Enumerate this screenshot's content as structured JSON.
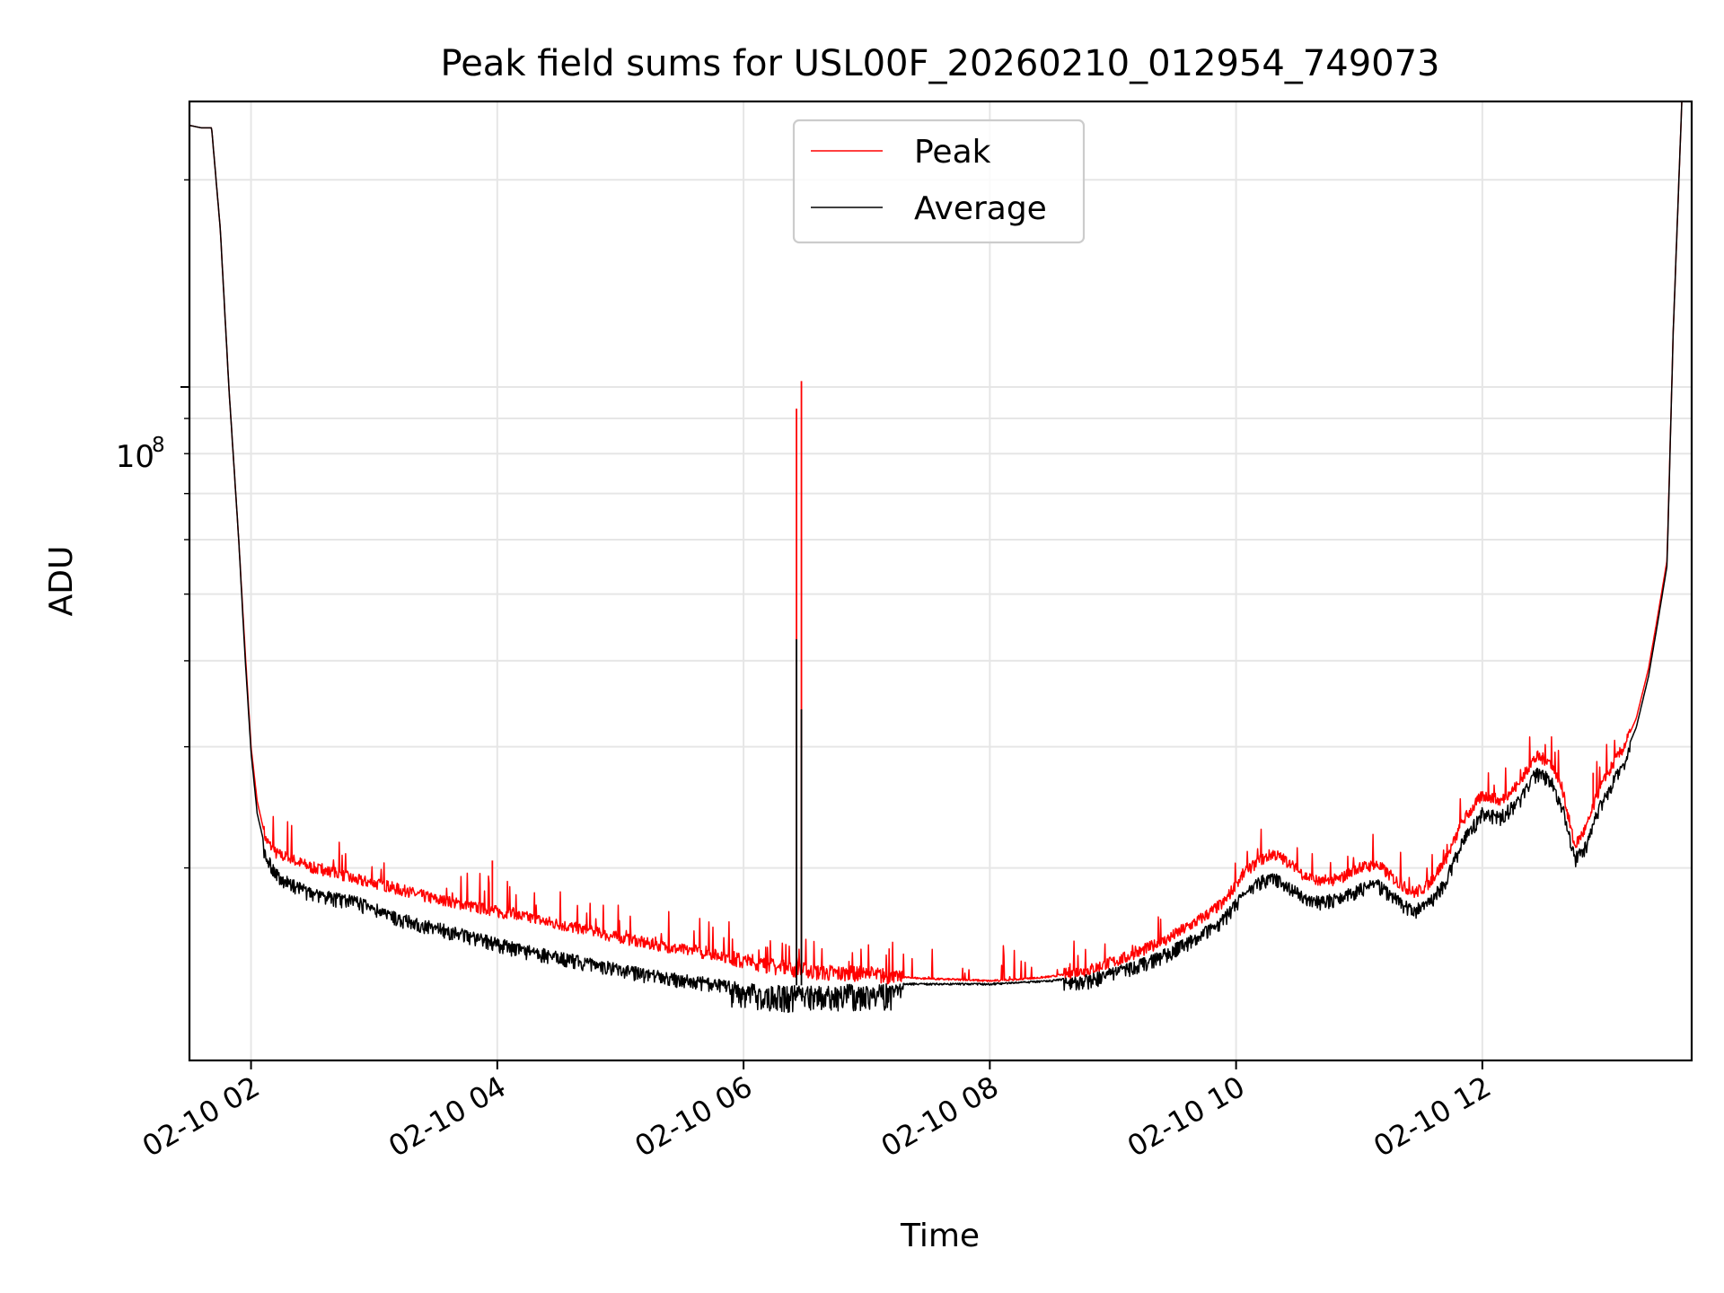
{
  "chart_data": {
    "type": "line",
    "title": "Peak field sums for USL00F_20260210_012954_749073",
    "xlabel": "Time",
    "ylabel": "ADU",
    "yscale": "log",
    "xlim": [
      1.5,
      13.7
    ],
    "ylim": [
      10500000.0,
      260000000.0
    ],
    "x_unit": "hours since 02-10 00:00",
    "x_ticks": [
      2,
      4,
      6,
      8,
      10,
      12
    ],
    "x_tick_labels": [
      "02-10 02",
      "02-10 04",
      "02-10 06",
      "02-10 08",
      "02-10 10",
      "02-10 12"
    ],
    "y_major_ticks": [
      100000000
    ],
    "y_tick_base": "10",
    "y_tick_exponent": "8",
    "y_minor_ticks": [
      20000000,
      30000000,
      40000000,
      50000000,
      60000000,
      70000000,
      80000000,
      90000000,
      200000000
    ],
    "grid": true,
    "legend_position": "upper-center",
    "series": [
      {
        "name": "Peak",
        "color": "#ff0000",
        "x": [
          1.5,
          1.6,
          1.68,
          1.75,
          1.82,
          1.9,
          1.95,
          2.0,
          2.05,
          2.12,
          2.2,
          2.35,
          2.5,
          2.7,
          2.85,
          3.0,
          3.2,
          3.5,
          3.9,
          4.2,
          4.6,
          5.0,
          5.4,
          5.8,
          6.0,
          6.3,
          6.6,
          6.9,
          7.2,
          7.5,
          7.8,
          8.0,
          8.2,
          8.5,
          8.8,
          9.1,
          9.4,
          9.7,
          9.9,
          10.05,
          10.2,
          10.3,
          10.4,
          10.55,
          10.7,
          10.85,
          11.0,
          11.15,
          11.25,
          11.35,
          11.45,
          11.55,
          11.7,
          11.85,
          12.0,
          12.15,
          12.3,
          12.4,
          12.45,
          12.55,
          12.65,
          12.75,
          12.85,
          12.95,
          13.05,
          13.15,
          13.25,
          13.35,
          13.42,
          13.5,
          13.55,
          13.62
        ],
        "y": [
          240000000.0,
          238000000.0,
          238000000.0,
          170000000.0,
          100000000.0,
          60000000.0,
          42000000.0,
          30000000.0,
          25000000.0,
          22000000.0,
          21000000.0,
          20500000.0,
          20000000.0,
          19600000.0,
          19200000.0,
          19000000.0,
          18600000.0,
          18000000.0,
          17400000.0,
          17000000.0,
          16400000.0,
          15800000.0,
          15300000.0,
          14900000.0,
          14600000.0,
          14300000.0,
          14100000.0,
          14000000.0,
          13900000.0,
          13800000.0,
          13750000.0,
          13700000.0,
          13750000.0,
          13900000.0,
          14200000.0,
          14800000.0,
          15600000.0,
          16800000.0,
          17800000.0,
          19500000.0,
          20500000.0,
          21000000.0,
          20500000.0,
          19500000.0,
          19000000.0,
          19300000.0,
          20000000.0,
          20200000.0,
          19500000.0,
          18800000.0,
          18400000.0,
          18800000.0,
          20500000.0,
          23500000.0,
          25500000.0,
          25000000.0,
          26500000.0,
          28500000.0,
          29000000.0,
          28500000.0,
          26000000.0,
          21500000.0,
          23000000.0,
          26000000.0,
          28000000.0,
          30000000.0,
          33000000.0,
          39000000.0,
          46000000.0,
          56000000.0,
          120000000.0,
          260000000.0
        ]
      },
      {
        "name": "Average",
        "color": "#000000",
        "x": [
          1.5,
          1.6,
          1.68,
          1.75,
          1.82,
          1.9,
          1.95,
          2.0,
          2.05,
          2.12,
          2.2,
          2.35,
          2.5,
          2.7,
          2.85,
          3.0,
          3.2,
          3.5,
          3.9,
          4.2,
          4.6,
          5.0,
          5.4,
          5.8,
          6.0,
          6.3,
          6.6,
          6.9,
          7.2,
          7.5,
          7.8,
          8.0,
          8.2,
          8.5,
          8.8,
          9.1,
          9.4,
          9.7,
          9.9,
          10.05,
          10.2,
          10.3,
          10.4,
          10.55,
          10.7,
          10.85,
          11.0,
          11.15,
          11.25,
          11.35,
          11.45,
          11.55,
          11.7,
          11.85,
          12.0,
          12.15,
          12.3,
          12.4,
          12.45,
          12.55,
          12.65,
          12.75,
          12.85,
          12.95,
          13.05,
          13.15,
          13.25,
          13.35,
          13.42,
          13.5,
          13.55,
          13.62
        ],
        "y": [
          240000000.0,
          238000000.0,
          238000000.0,
          170000000.0,
          100000000.0,
          60000000.0,
          41000000.0,
          29500000.0,
          24000000.0,
          21200000.0,
          20000000.0,
          19200000.0,
          18700000.0,
          18400000.0,
          18200000.0,
          17800000.0,
          17200000.0,
          16700000.0,
          16000000.0,
          15500000.0,
          15000000.0,
          14500000.0,
          14100000.0,
          13800000.0,
          13600000.0,
          13500000.0,
          13500000.0,
          13550000.0,
          13600000.0,
          13600000.0,
          13600000.0,
          13600000.0,
          13650000.0,
          13750000.0,
          14000000.0,
          14500000.0,
          15200000.0,
          16200000.0,
          17200000.0,
          18500000.0,
          19500000.0,
          19800000.0,
          19300000.0,
          18500000.0,
          18200000.0,
          18500000.0,
          19000000.0,
          19300000.0,
          18700000.0,
          18000000.0,
          17700000.0,
          18000000.0,
          19500000.0,
          22500000.0,
          24500000.0,
          24200000.0,
          25500000.0,
          27500000.0,
          28000000.0,
          27500000.0,
          25000000.0,
          21000000.0,
          22000000.0,
          25000000.0,
          27000000.0,
          29000000.0,
          32000000.0,
          38000000.0,
          45000000.0,
          55000000.0,
          120000000.0,
          260000000.0
        ]
      }
    ],
    "spikes": [
      {
        "series": "Peak",
        "x": 6.43,
        "y": 93000000.0
      },
      {
        "series": "Peak",
        "x": 6.47,
        "y": 102000000.0
      },
      {
        "series": "Average",
        "x": 6.43,
        "y": 43000000.0
      },
      {
        "series": "Average",
        "x": 6.47,
        "y": 34000000.0
      },
      {
        "series": "Peak",
        "x": 3.96,
        "y": 20500000.0
      },
      {
        "series": "Peak",
        "x": 12.9,
        "y": 27500000.0
      }
    ]
  }
}
